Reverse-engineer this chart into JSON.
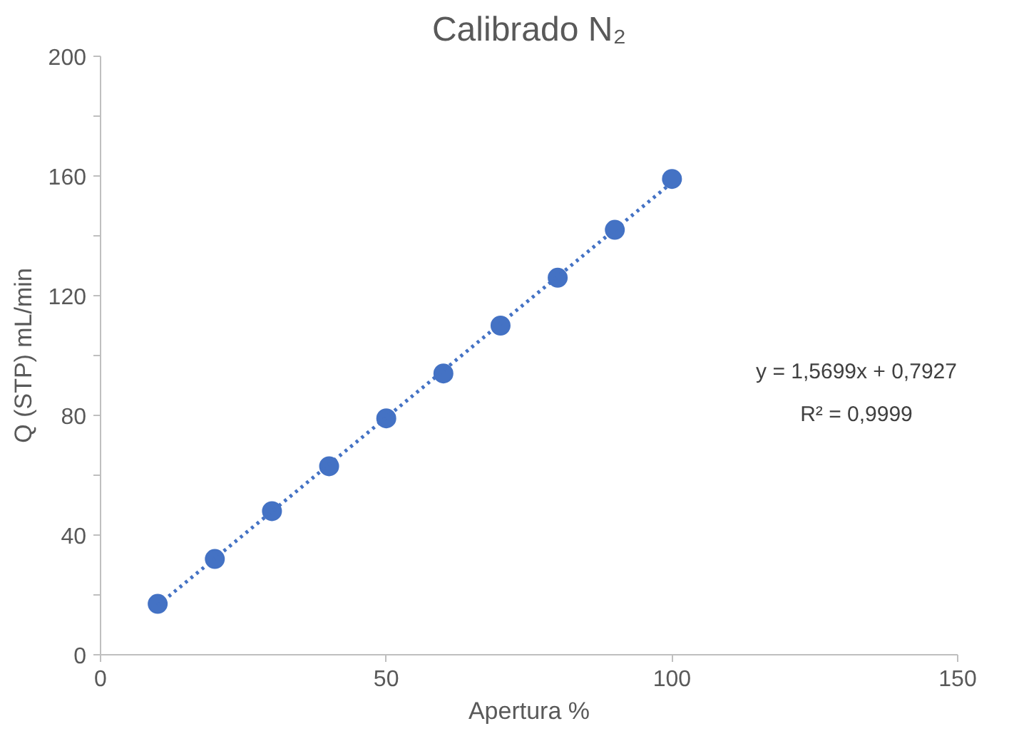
{
  "chart_data": {
    "type": "scatter",
    "title": "Calibrado N₂",
    "xlabel": "Apertura %",
    "ylabel": "Q (STP) mL/min",
    "x": [
      10,
      20,
      30,
      40,
      50,
      60,
      70,
      80,
      90,
      100
    ],
    "series": [
      {
        "color": "#4472c4",
        "marker": "circle",
        "values": [
          17,
          32,
          48,
          63,
          79,
          94,
          110,
          126,
          142,
          159
        ]
      },
      {
        "type": "line",
        "color": "#4472c4",
        "line_style": "dotted",
        "marker": "none",
        "x": [
          10,
          100
        ],
        "values": [
          16.5,
          157.8
        ]
      }
    ],
    "xlim": [
      0,
      150
    ],
    "xticks": [
      0,
      50,
      100,
      150
    ],
    "ylim": [
      0,
      200
    ],
    "yticks": [
      0,
      {
        "value": 20,
        "label": null
      },
      40,
      {
        "value": 60,
        "label": null
      },
      80,
      {
        "value": 100,
        "label": null
      },
      120,
      {
        "value": 140,
        "label": null
      },
      160,
      {
        "value": 180,
        "label": null
      },
      200
    ],
    "grid": false,
    "annotations": [
      "y = 1,5699x + 0,7927",
      "R² = 0,9999"
    ]
  }
}
